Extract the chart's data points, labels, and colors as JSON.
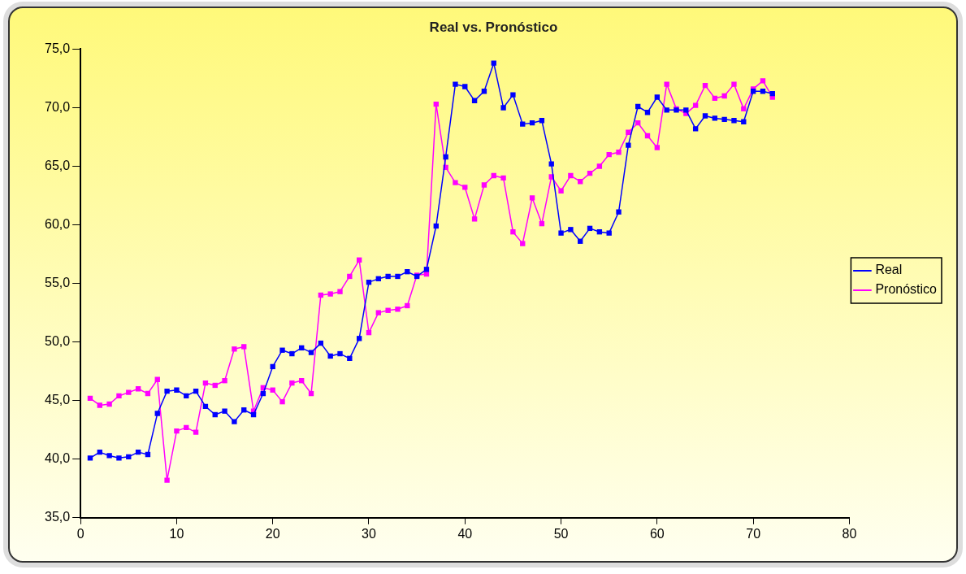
{
  "chart_data": {
    "type": "line",
    "title": "Real vs. Pronóstico",
    "x": [
      1,
      2,
      3,
      4,
      5,
      6,
      7,
      8,
      9,
      10,
      11,
      12,
      13,
      14,
      15,
      16,
      17,
      18,
      19,
      20,
      21,
      22,
      23,
      24,
      25,
      26,
      27,
      28,
      29,
      30,
      31,
      32,
      33,
      34,
      35,
      36,
      37,
      38,
      39,
      40,
      41,
      42,
      43,
      44,
      45,
      46,
      47,
      48,
      49,
      50,
      51,
      52,
      53,
      54,
      55,
      56,
      57,
      58,
      59,
      60,
      61,
      62,
      63,
      64,
      65,
      66,
      67,
      68,
      69,
      70,
      71,
      72
    ],
    "series": [
      {
        "name": "Real",
        "color": "#0000ff",
        "values": [
          40.1,
          40.6,
          40.3,
          40.1,
          40.2,
          40.6,
          40.4,
          43.9,
          45.8,
          45.9,
          45.4,
          45.8,
          44.5,
          43.8,
          44.1,
          43.2,
          44.2,
          43.8,
          45.6,
          47.9,
          49.3,
          49.0,
          49.5,
          49.1,
          49.9,
          48.8,
          49.0,
          48.6,
          50.3,
          55.1,
          55.4,
          55.6,
          55.6,
          56.0,
          55.6,
          56.2,
          59.9,
          65.8,
          72.0,
          71.8,
          70.6,
          71.4,
          73.8,
          70.0,
          71.1,
          68.6,
          68.7,
          68.9,
          65.2,
          59.3,
          59.6,
          58.6,
          59.7,
          59.4,
          59.3,
          61.1,
          66.8,
          70.1,
          69.6,
          70.9,
          69.8,
          69.8,
          69.8,
          68.2,
          69.3,
          69.1,
          69.0,
          68.9,
          68.8,
          71.4,
          71.4,
          71.2
        ]
      },
      {
        "name": "Pronóstico",
        "color": "#ff00ff",
        "values": [
          45.2,
          44.6,
          44.7,
          45.4,
          45.7,
          46.0,
          45.6,
          46.8,
          38.2,
          42.4,
          42.7,
          42.3,
          46.5,
          46.3,
          46.7,
          49.4,
          49.6,
          44.1,
          46.1,
          45.9,
          44.9,
          46.5,
          46.7,
          45.6,
          54.0,
          54.1,
          54.3,
          55.6,
          57.0,
          50.8,
          52.5,
          52.7,
          52.8,
          53.1,
          55.7,
          55.8,
          70.3,
          64.9,
          63.6,
          63.2,
          60.5,
          63.4,
          64.2,
          64.0,
          59.4,
          58.4,
          62.3,
          60.1,
          64.1,
          62.9,
          64.2,
          63.7,
          64.4,
          65.0,
          66.0,
          66.2,
          67.9,
          68.7,
          67.6,
          66.6,
          72.0,
          69.9,
          69.5,
          70.2,
          71.9,
          70.8,
          71.0,
          72.0,
          69.9,
          71.6,
          72.3,
          70.9
        ]
      }
    ],
    "xlim": [
      0,
      80
    ],
    "xticks": [
      0,
      10,
      20,
      30,
      40,
      50,
      60,
      70,
      80
    ],
    "ylim": [
      35,
      75
    ],
    "yticks": [
      {
        "value": 35,
        "label": "35,0"
      },
      {
        "value": 40,
        "label": "40,0"
      },
      {
        "value": 45,
        "label": "45,0"
      },
      {
        "value": 50,
        "label": "50,0"
      },
      {
        "value": 55,
        "label": "55,0"
      },
      {
        "value": 60,
        "label": "60,0"
      },
      {
        "value": 65,
        "label": "65,0"
      },
      {
        "value": 70,
        "label": "70,0"
      },
      {
        "value": 75,
        "label": "75,0"
      }
    ],
    "grid": false,
    "legend": "right",
    "marker": "square",
    "line_style": "solid"
  }
}
